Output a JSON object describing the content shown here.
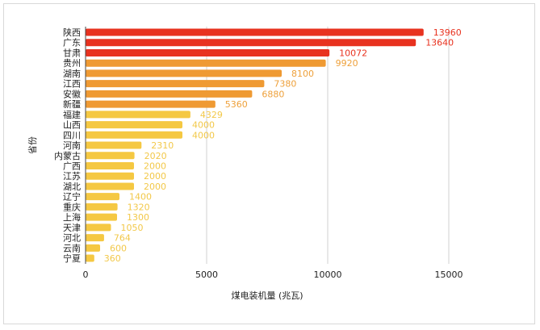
{
  "chart_data": {
    "type": "bar",
    "orientation": "horizontal",
    "categories": [
      "陕西",
      "广东",
      "甘肃",
      "贵州",
      "湖南",
      "江西",
      "安徽",
      "新疆",
      "福建",
      "山西",
      "四川",
      "河南",
      "内蒙古",
      "广西",
      "江苏",
      "湖北",
      "辽宁",
      "重庆",
      "上海",
      "天津",
      "河北",
      "云南",
      "宁夏"
    ],
    "values": [
      13960,
      13640,
      10072,
      9920,
      8100,
      7380,
      6880,
      5360,
      4329,
      4000,
      4000,
      2310,
      2020,
      2000,
      2000,
      2000,
      1400,
      1320,
      1300,
      1050,
      764,
      600,
      360
    ],
    "colors": [
      "#e8321f",
      "#e8321f",
      "#e8321f",
      "#ef9a33",
      "#ef9a33",
      "#ef9a33",
      "#ef9a33",
      "#ef9a33",
      "#f5c842",
      "#f5c842",
      "#f5c842",
      "#f5c842",
      "#f5c842",
      "#f5c842",
      "#f5c842",
      "#f5c842",
      "#f5c842",
      "#f5c842",
      "#f5c842",
      "#f5c842",
      "#f5c842",
      "#f5c842",
      "#f5c842"
    ],
    "label_colors": {
      "#e8321f": "#e8321f",
      "#ef9a33": "#eea03a",
      "#f5c842": "#f2c849"
    },
    "xlabel": "煤电装机量 (兆瓦)",
    "ylabel": "省份",
    "xlim": [
      0,
      17000
    ],
    "xticks": [
      0,
      5000,
      10000,
      15000
    ],
    "grid": true,
    "data_labels": true
  }
}
